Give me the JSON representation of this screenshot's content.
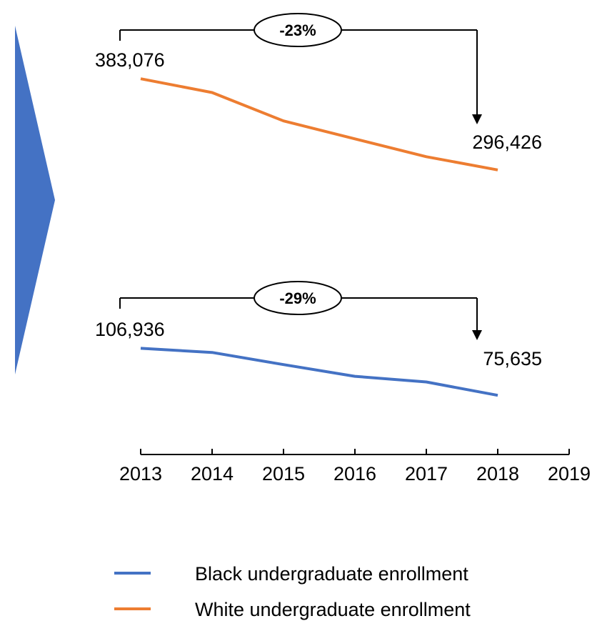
{
  "chart_data": {
    "type": "line",
    "x": [
      "2013",
      "2014",
      "2015",
      "2016",
      "2017",
      "2018"
    ],
    "x_ticks": [
      "2013",
      "2014",
      "2015",
      "2016",
      "2017",
      "2018",
      "2019"
    ],
    "series": [
      {
        "name": "Black undergraduate enrollment",
        "color": "#4472C4",
        "values": [
          106936,
          104200,
          96100,
          88300,
          84500,
          75635
        ],
        "start_label": "106,936",
        "end_label": "75,635",
        "change_label": "-29%"
      },
      {
        "name": "White undergraduate enrollment",
        "color": "#ED7D31",
        "values": [
          383076,
          370000,
          343000,
          326000,
          309000,
          296426
        ],
        "start_label": "383,076",
        "end_label": "296,426",
        "change_label": "-23%"
      }
    ],
    "axis_break": true,
    "grid": false,
    "legend_position": "bottom"
  },
  "colors": {
    "arrow_shape": "#4472C4",
    "axis": "#000000"
  }
}
